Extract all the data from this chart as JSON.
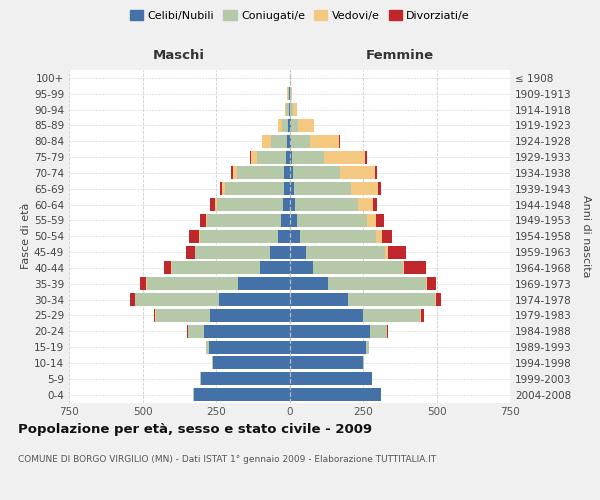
{
  "age_groups": [
    "0-4",
    "5-9",
    "10-14",
    "15-19",
    "20-24",
    "25-29",
    "30-34",
    "35-39",
    "40-44",
    "45-49",
    "50-54",
    "55-59",
    "60-64",
    "65-69",
    "70-74",
    "75-79",
    "80-84",
    "85-89",
    "90-94",
    "95-99",
    "100+"
  ],
  "birth_years": [
    "2004-2008",
    "1999-2003",
    "1994-1998",
    "1989-1993",
    "1984-1988",
    "1979-1983",
    "1974-1978",
    "1969-1973",
    "1964-1968",
    "1959-1963",
    "1954-1958",
    "1949-1953",
    "1944-1948",
    "1939-1943",
    "1934-1938",
    "1929-1933",
    "1924-1928",
    "1919-1923",
    "1914-1918",
    "1909-1913",
    "≤ 1908"
  ],
  "male_celibi": [
    325,
    300,
    260,
    275,
    290,
    270,
    240,
    175,
    100,
    65,
    40,
    30,
    22,
    20,
    18,
    12,
    8,
    5,
    3,
    2,
    0
  ],
  "male_coniugati": [
    2,
    3,
    5,
    10,
    55,
    185,
    285,
    310,
    300,
    255,
    265,
    250,
    225,
    200,
    160,
    100,
    55,
    20,
    8,
    3,
    0
  ],
  "male_vedovi": [
    0,
    0,
    0,
    0,
    0,
    1,
    1,
    2,
    2,
    2,
    3,
    5,
    8,
    10,
    15,
    20,
    30,
    15,
    5,
    2,
    0
  ],
  "male_divorziati": [
    0,
    0,
    0,
    0,
    2,
    5,
    15,
    20,
    25,
    30,
    35,
    20,
    15,
    8,
    5,
    3,
    1,
    0,
    0,
    0,
    0
  ],
  "female_nubili": [
    310,
    280,
    250,
    260,
    275,
    250,
    200,
    130,
    80,
    55,
    35,
    25,
    18,
    15,
    12,
    8,
    5,
    4,
    3,
    2,
    0
  ],
  "female_coniugate": [
    2,
    2,
    5,
    10,
    58,
    195,
    295,
    335,
    305,
    270,
    260,
    240,
    215,
    195,
    160,
    110,
    65,
    25,
    8,
    3,
    0
  ],
  "female_vedove": [
    0,
    0,
    0,
    0,
    0,
    1,
    2,
    3,
    5,
    10,
    20,
    30,
    50,
    90,
    120,
    140,
    100,
    55,
    15,
    5,
    0
  ],
  "female_divorziate": [
    0,
    0,
    0,
    0,
    2,
    10,
    20,
    30,
    75,
    60,
    35,
    25,
    15,
    10,
    5,
    4,
    2,
    1,
    0,
    0,
    0
  ],
  "color_celibi": "#4472A8",
  "color_coniugati": "#B5C9A8",
  "color_vedovi": "#F5C882",
  "color_divorziati": "#C0272D",
  "title": "Popolazione per età, sesso e stato civile - 2009",
  "subtitle": "COMUNE DI BORGO VIRGILIO (MN) - Dati ISTAT 1° gennaio 2009 - Elaborazione TUTTITALIA.IT",
  "label_maschi": "Maschi",
  "label_femmine": "Femmine",
  "label_fasce": "Fasce di età",
  "label_anni": "Anni di nascita",
  "legend_labels": [
    "Celibi/Nubili",
    "Coniugati/e",
    "Vedovi/e",
    "Divorziati/e"
  ],
  "xlim": 750,
  "bg_color": "#f0f0f0",
  "plot_bg": "#ffffff",
  "grid_color": "#cccccc"
}
